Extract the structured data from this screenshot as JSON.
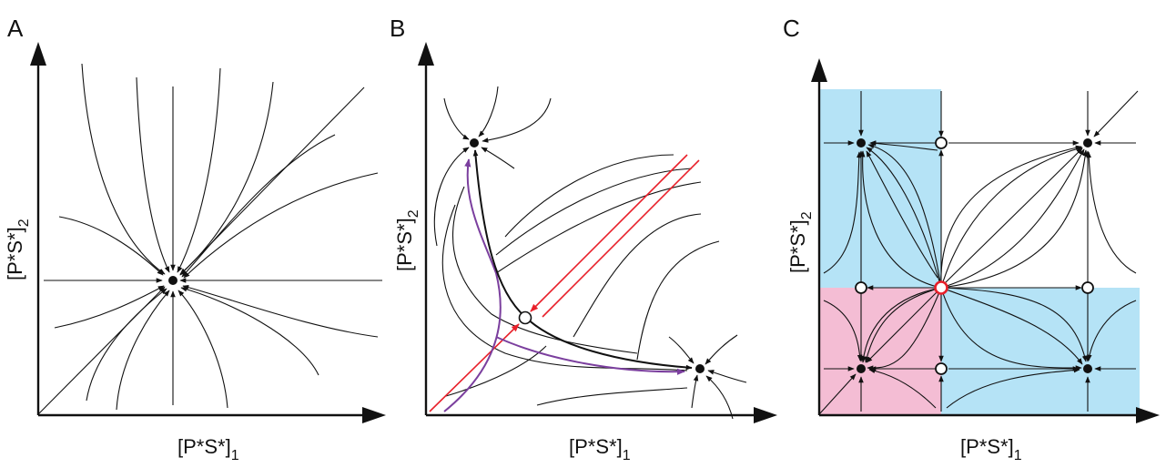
{
  "panels": [
    {
      "id": "A",
      "label": "A",
      "xlabel": "[P*S*]",
      "xlabel_sub": "1",
      "ylabel": "[P*S*]",
      "ylabel_sub": "2"
    },
    {
      "id": "B",
      "label": "B",
      "xlabel": "[P*S*]",
      "xlabel_sub": "1",
      "ylabel": "[P*S*]",
      "ylabel_sub": "2"
    },
    {
      "id": "C",
      "label": "C",
      "xlabel": "[P*S*]",
      "xlabel_sub": "1",
      "ylabel": "[P*S*]",
      "ylabel_sub": "2"
    }
  ],
  "colors": {
    "ink": "#111111",
    "separatrix": "#e8202a",
    "highlight_trajectory": "#7b3f9e",
    "basin_blue": "#b5e3f6",
    "basin_pink": "#f4bdd4",
    "unstable_point_outline": "#e8202a"
  },
  "fixed_points": {
    "A": [
      {
        "type": "stable"
      }
    ],
    "B": [
      {
        "type": "stable"
      },
      {
        "type": "saddle"
      },
      {
        "type": "stable"
      }
    ],
    "C": [
      {
        "type": "stable"
      },
      {
        "type": "saddle"
      },
      {
        "type": "stable"
      },
      {
        "type": "saddle"
      },
      {
        "type": "unstable"
      },
      {
        "type": "saddle"
      },
      {
        "type": "stable"
      },
      {
        "type": "saddle"
      },
      {
        "type": "stable"
      }
    ]
  }
}
